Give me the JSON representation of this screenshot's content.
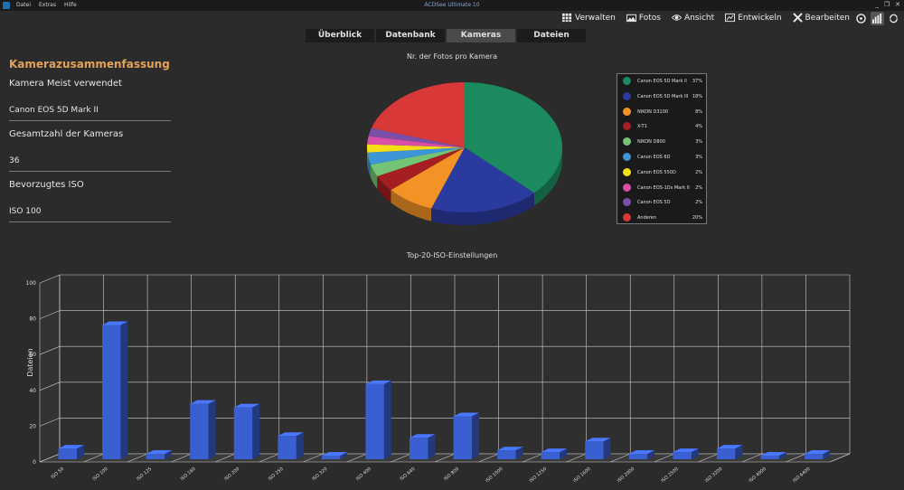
{
  "app": {
    "menu": [
      "Datei",
      "Extras",
      "Hilfe"
    ],
    "window_title": "ACDSee Ultimate 10",
    "window_controls": [
      "_",
      "❐",
      "✕"
    ]
  },
  "modes": [
    {
      "label": "Verwalten",
      "icon": "grid-icon"
    },
    {
      "label": "Fotos",
      "icon": "photos-icon"
    },
    {
      "label": "Ansicht",
      "icon": "eye-icon"
    },
    {
      "label": "Entwickeln",
      "icon": "develop-icon"
    },
    {
      "label": "Bearbeiten",
      "icon": "edit-icon"
    }
  ],
  "tabs": [
    {
      "label": "Überblick",
      "active": false
    },
    {
      "label": "Datenbank",
      "active": false
    },
    {
      "label": "Kameras",
      "active": true
    },
    {
      "label": "Dateien",
      "active": false
    }
  ],
  "summary": {
    "title": "Kamerazusammenfassung",
    "items": [
      {
        "label": "Kamera Meist verwendet",
        "value": "Canon EOS 5D Mark II"
      },
      {
        "label": "Gesamtzahl der Kameras",
        "value": "36"
      },
      {
        "label": "Bevorzugtes ISO",
        "value": "ISO 100"
      }
    ]
  },
  "chart_data": [
    {
      "type": "pie",
      "title": "Nr. der Fotos pro Kamera",
      "categories": [
        "Canon EOS 5D Mark II",
        "Canon EOS 5D Mark III",
        "NIKON D3100",
        "X-T1",
        "NIKON D800",
        "Canon EOS 6D",
        "Canon EOS 550D",
        "Canon EOS-1Ds Mark II",
        "Canon EOS 5D",
        "Anderen"
      ],
      "values": [
        37,
        18,
        8,
        4,
        3,
        3,
        2,
        2,
        2,
        20
      ],
      "labels": [
        "37%",
        "18%",
        "8%",
        "4%",
        "3%",
        "3%",
        "2%",
        "2%",
        "2%",
        "20%"
      ],
      "colors": [
        "#1b8a5e",
        "#2b3a9e",
        "#f39325",
        "#a51e22",
        "#74c476",
        "#3b95d6",
        "#f7dd16",
        "#d94fa6",
        "#7b4fa8",
        "#d93838"
      ],
      "legend": "right"
    },
    {
      "type": "bar",
      "title": "Top-20-ISO-Einstellungen",
      "ylabel": "Dateien",
      "ylim": [
        0,
        100
      ],
      "yticks": [
        "0",
        "20",
        "40",
        "60",
        "80",
        "100"
      ],
      "categories": [
        "ISO 50",
        "ISO 100",
        "ISO 125",
        "ISO 160",
        "ISO 200",
        "ISO 250",
        "ISO 320",
        "ISO 400",
        "ISO 640",
        "ISO 800",
        "ISO 1000",
        "ISO 1250",
        "ISO 1600",
        "ISO 2000",
        "ISO 2500",
        "ISO 3200",
        "ISO 4000",
        "ISO 6400"
      ],
      "values": [
        6,
        75,
        3,
        31,
        29,
        13,
        2,
        42,
        12,
        24,
        5,
        4,
        10,
        3,
        4,
        6,
        2,
        3
      ],
      "color": "#3a5fd0",
      "grid": true
    }
  ]
}
